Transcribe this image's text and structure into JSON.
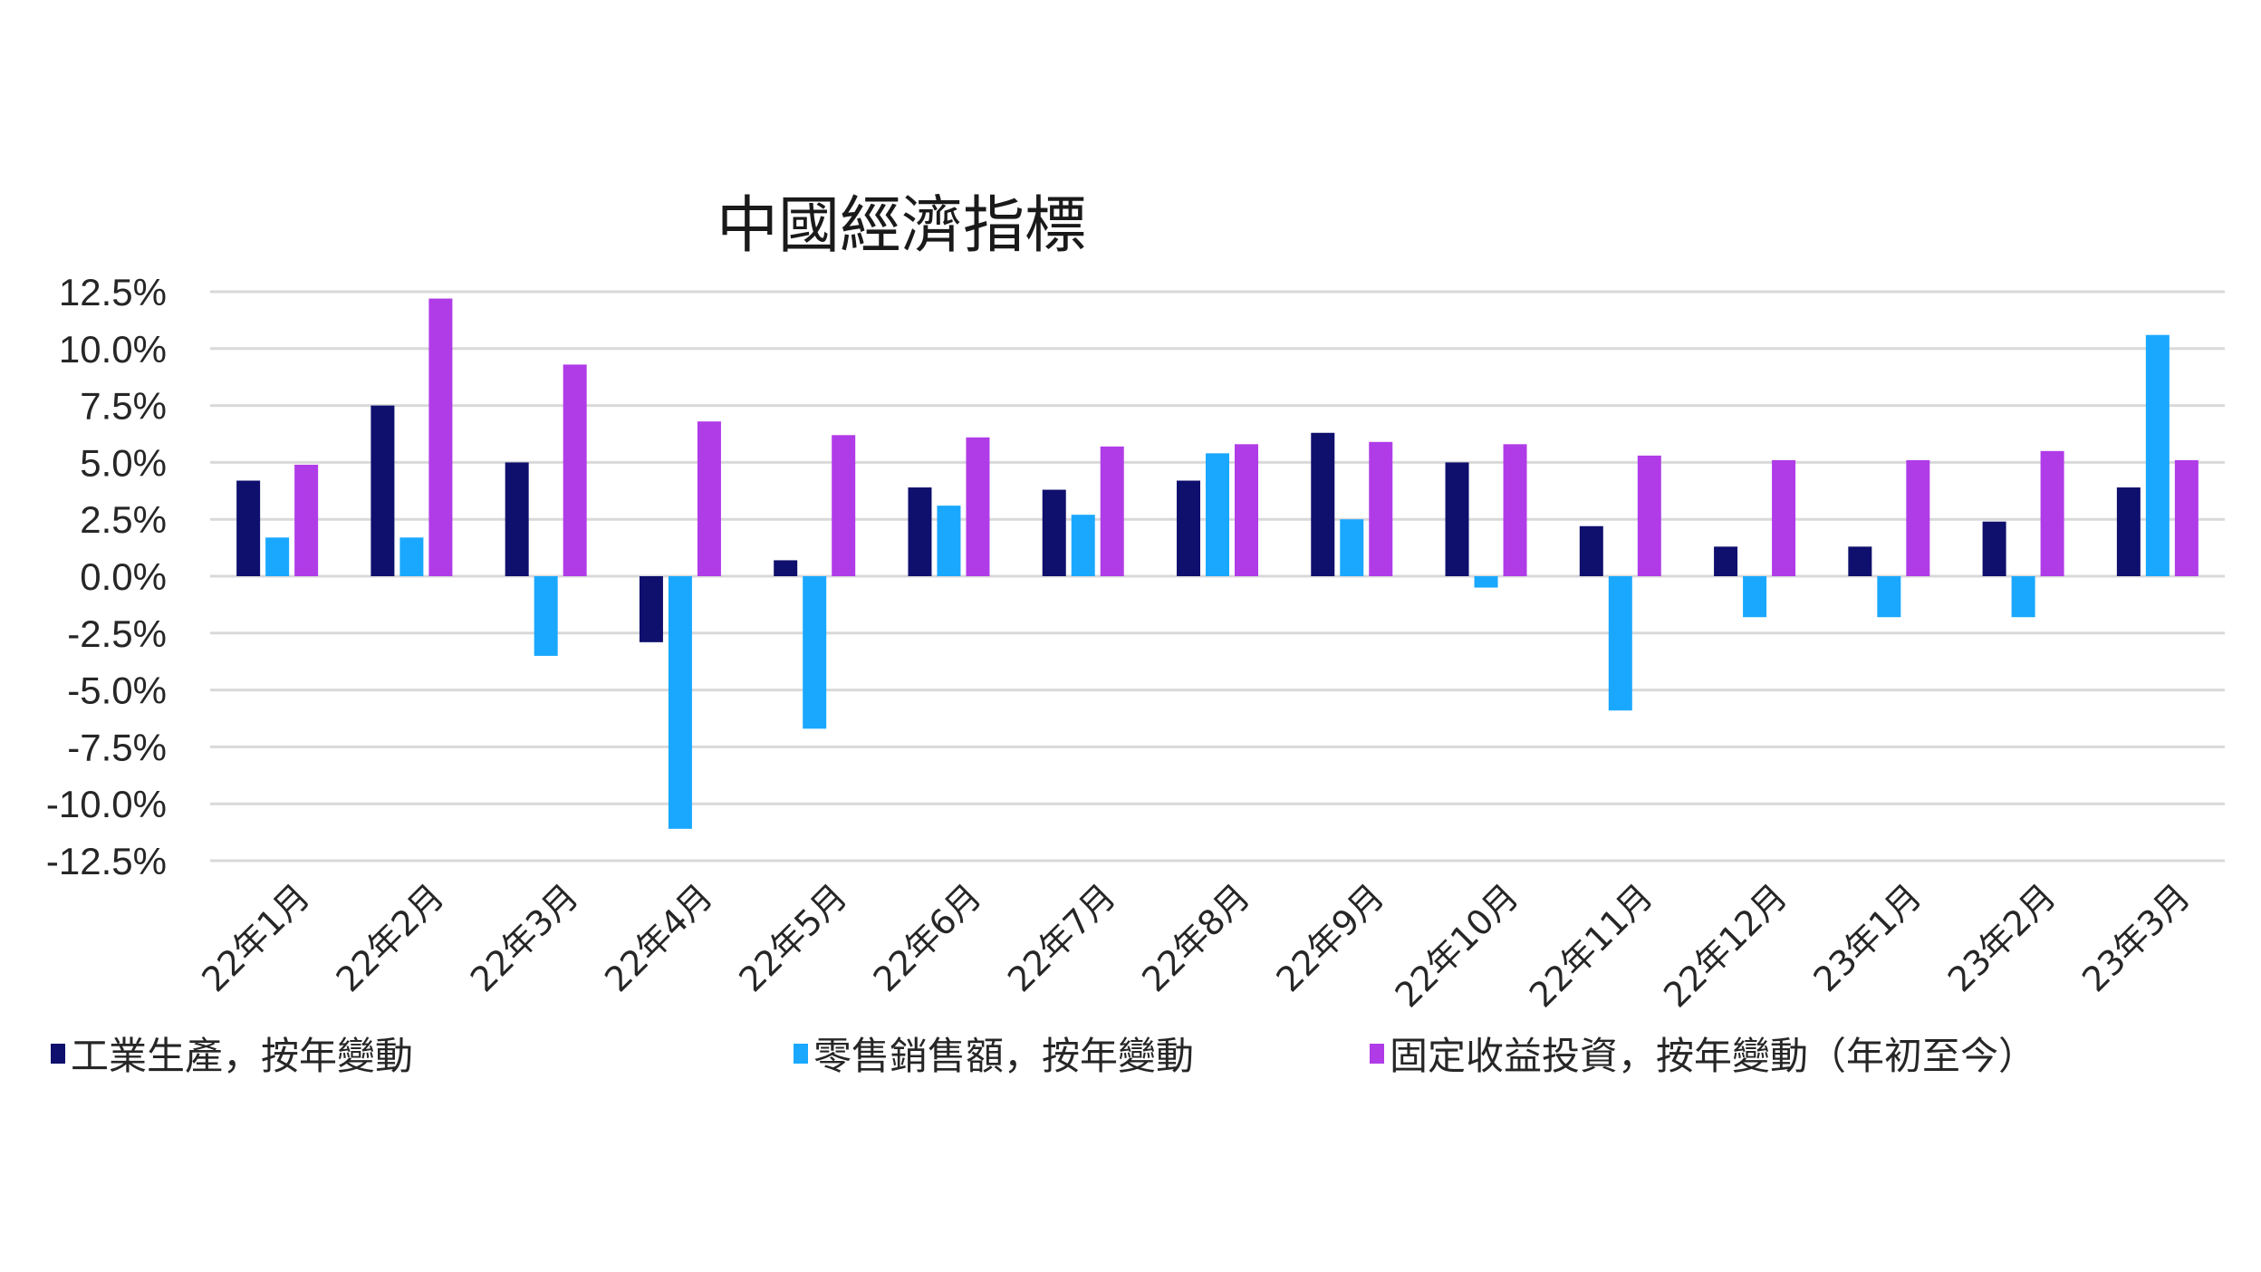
{
  "chart_data": {
    "type": "bar",
    "title": "中國經濟指標",
    "xlabel": "",
    "ylabel": "",
    "ylim": [
      -12.5,
      12.5
    ],
    "yticks": [
      "12.5%",
      "10.0%",
      "7.5%",
      "5.0%",
      "2.5%",
      "0.0%",
      "-2.5%",
      "-5.0%",
      "-7.5%",
      "-10.0%",
      "-12.5%"
    ],
    "ytick_values": [
      12.5,
      10.0,
      7.5,
      5.0,
      2.5,
      0.0,
      -2.5,
      -5.0,
      -7.5,
      -10.0,
      -12.5
    ],
    "grid": true,
    "legend_position": "bottom",
    "categories": [
      "22年1月",
      "22年2月",
      "22年3月",
      "22年4月",
      "22年5月",
      "22年6月",
      "22年7月",
      "22年8月",
      "22年9月",
      "22年10月",
      "22年11月",
      "22年12月",
      "23年1月",
      "23年2月",
      "23年3月"
    ],
    "series": [
      {
        "name": "工業生產，按年變動",
        "color": "#0f0f6e",
        "values": [
          4.2,
          7.5,
          5.0,
          -2.9,
          0.7,
          3.9,
          3.8,
          4.2,
          6.3,
          5.0,
          2.2,
          1.3,
          1.3,
          2.4,
          3.9
        ]
      },
      {
        "name": "零售銷售額，按年變動",
        "color": "#1aa8ff",
        "values": [
          1.7,
          1.7,
          -3.5,
          -11.1,
          -6.7,
          3.1,
          2.7,
          5.4,
          2.5,
          -0.5,
          -5.9,
          -1.8,
          -1.8,
          -1.8,
          10.6
        ]
      },
      {
        "name": "固定收益投資，按年變動（年初至今）",
        "color": "#b03ce8",
        "values": [
          4.9,
          12.2,
          9.3,
          6.8,
          6.2,
          6.1,
          5.7,
          5.8,
          5.9,
          5.8,
          5.3,
          5.1,
          5.1,
          5.5,
          5.1
        ]
      }
    ]
  }
}
